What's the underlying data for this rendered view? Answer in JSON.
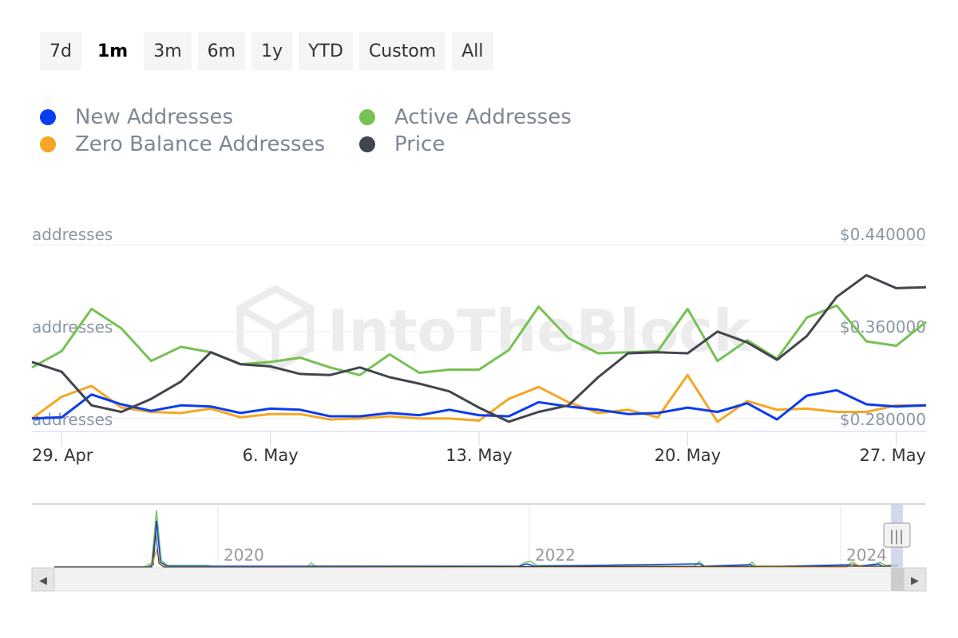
{
  "range_buttons": [
    {
      "label": "7d",
      "active": false
    },
    {
      "label": "1m",
      "active": true
    },
    {
      "label": "3m",
      "active": false
    },
    {
      "label": "6m",
      "active": false
    },
    {
      "label": "1y",
      "active": false
    },
    {
      "label": "YTD",
      "active": false
    },
    {
      "label": "Custom",
      "active": false
    },
    {
      "label": "All",
      "active": false
    }
  ],
  "legend": [
    {
      "label": "New Addresses",
      "color": "#0a3cf0"
    },
    {
      "label": "Active Addresses",
      "color": "#76c153"
    },
    {
      "label": "Zero Balance Addresses",
      "color": "#f5a623"
    },
    {
      "label": "Price",
      "color": "#41464d"
    }
  ],
  "watermark": "IntoTheBlock",
  "chart_data": {
    "type": "line",
    "x_start": "2024-04-28",
    "x_end": "2024-05-28",
    "x_ticks": [
      {
        "date": "2024-04-29",
        "label": "29. Apr"
      },
      {
        "date": "2024-05-06",
        "label": "6. May"
      },
      {
        "date": "2024-05-13",
        "label": "13. May"
      },
      {
        "date": "2024-05-20",
        "label": "20. May"
      },
      {
        "date": "2024-05-27",
        "label": "27. May"
      }
    ],
    "left_axis": {
      "tick_labels": [
        "addresses",
        "addresses",
        "addresses"
      ]
    },
    "right_axis": {
      "ticks": [
        0.28,
        0.36,
        0.44
      ],
      "tick_labels": [
        "$0.280000",
        "$0.360000",
        "$0.440000"
      ],
      "range": [
        0.268,
        0.44
      ]
    },
    "dates": [
      "2024-04-28",
      "2024-04-29",
      "2024-04-30",
      "2024-05-01",
      "2024-05-02",
      "2024-05-03",
      "2024-05-04",
      "2024-05-05",
      "2024-05-06",
      "2024-05-07",
      "2024-05-08",
      "2024-05-09",
      "2024-05-10",
      "2024-05-11",
      "2024-05-12",
      "2024-05-13",
      "2024-05-14",
      "2024-05-15",
      "2024-05-16",
      "2024-05-17",
      "2024-05-18",
      "2024-05-19",
      "2024-05-20",
      "2024-05-21",
      "2024-05-22",
      "2024-05-23",
      "2024-05-24",
      "2024-05-25",
      "2024-05-26",
      "2024-05-27",
      "2024-05-28"
    ],
    "series": [
      {
        "name": "Active Addresses",
        "color": "#76c153",
        "axis": "left",
        "values": [
          0.327,
          0.342,
          0.381,
          0.363,
          0.333,
          0.346,
          0.341,
          0.33,
          0.332,
          0.336,
          0.327,
          0.32,
          0.339,
          0.322,
          0.325,
          0.325,
          0.343,
          0.383,
          0.354,
          0.34,
          0.341,
          0.342,
          0.381,
          0.333,
          0.352,
          0.335,
          0.373,
          0.384,
          0.351,
          0.347,
          0.369
        ]
      },
      {
        "name": "Zero Balance Addresses",
        "color": "#f5a623",
        "axis": "left",
        "values": [
          0.28,
          0.3,
          0.31,
          0.29,
          0.286,
          0.285,
          0.289,
          0.281,
          0.284,
          0.284,
          0.279,
          0.28,
          0.282,
          0.28,
          0.28,
          0.278,
          0.298,
          0.309,
          0.295,
          0.285,
          0.288,
          0.281,
          0.32,
          0.277,
          0.296,
          0.288,
          0.289,
          0.286,
          0.286,
          0.292,
          0.292
        ]
      },
      {
        "name": "New Addresses",
        "color": "#0a3cf0",
        "axis": "left",
        "values": [
          0.28,
          0.281,
          0.302,
          0.293,
          0.287,
          0.292,
          0.291,
          0.285,
          0.289,
          0.288,
          0.282,
          0.282,
          0.285,
          0.283,
          0.288,
          0.283,
          0.282,
          0.295,
          0.291,
          0.288,
          0.284,
          0.285,
          0.29,
          0.286,
          0.294,
          0.279,
          0.301,
          0.306,
          0.293,
          0.291,
          0.292
        ]
      },
      {
        "name": "Price",
        "color": "#41464d",
        "axis": "right",
        "values": [
          0.332,
          0.323,
          0.292,
          0.286,
          0.298,
          0.314,
          0.341,
          0.33,
          0.328,
          0.321,
          0.32,
          0.327,
          0.318,
          0.312,
          0.305,
          0.29,
          0.277,
          0.286,
          0.292,
          0.318,
          0.34,
          0.341,
          0.34,
          0.36,
          0.35,
          0.334,
          0.356,
          0.392,
          0.412,
          0.4,
          0.401
        ]
      }
    ]
  },
  "navigator": {
    "year_labels": [
      "2020",
      "2022",
      "2024"
    ],
    "scroll_left_label": "◀",
    "scroll_right_label": "▶",
    "handle_label": "|||"
  }
}
